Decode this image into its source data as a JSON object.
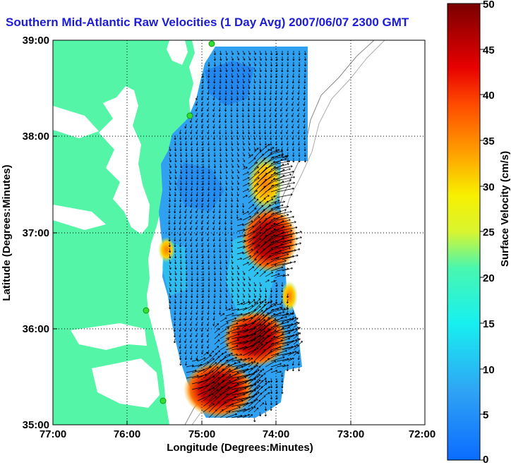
{
  "title": "Southern Mid-Atlantic Raw Velocities (1 Day Avg) 2007/06/07 2300 GMT",
  "x_axis": {
    "label": "Longitude (Degrees:Minutes)",
    "ticks": [
      "77:00",
      "76:00",
      "75:00",
      "74:00",
      "73:00",
      "72:00"
    ],
    "range": [
      -77,
      -72
    ]
  },
  "y_axis": {
    "label": "Latitude (Degrees:Minutes)",
    "ticks": [
      "39:00",
      "38:00",
      "37:00",
      "36:00",
      "35:00"
    ],
    "range": [
      35,
      39
    ]
  },
  "colorbar": {
    "label": "Surface Velocity (cm/s)",
    "ticks": [
      "50",
      "45",
      "40",
      "35",
      "30",
      "25",
      "20",
      "15",
      "10",
      "5",
      "0"
    ],
    "range": [
      0,
      50
    ]
  },
  "colors": {
    "land": "#55f5a8",
    "title": "#1c1cd8",
    "station": "#33dd33",
    "arrow": "#000000"
  }
}
